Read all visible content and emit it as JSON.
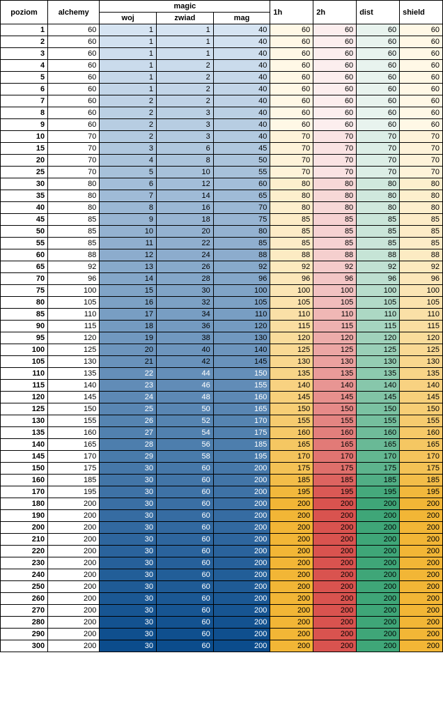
{
  "headers": {
    "poziom": "poziom",
    "alchemy": "alchemy",
    "magic": "magic",
    "woj": "woj",
    "zwiad": "zwiad",
    "mag": "mag",
    "h1": "1h",
    "h2": "2h",
    "dist": "dist",
    "shield": "shield"
  },
  "columns": [
    "poziom",
    "alchemy",
    "woj",
    "zwiad",
    "mag",
    "h1",
    "h2",
    "dist",
    "shield"
  ],
  "rows": [
    [
      1,
      60,
      1,
      1,
      40,
      60,
      60,
      60,
      60
    ],
    [
      2,
      60,
      1,
      1,
      40,
      60,
      60,
      60,
      60
    ],
    [
      3,
      60,
      1,
      1,
      40,
      60,
      60,
      60,
      60
    ],
    [
      4,
      60,
      1,
      2,
      40,
      60,
      60,
      60,
      60
    ],
    [
      5,
      60,
      1,
      2,
      40,
      60,
      60,
      60,
      60
    ],
    [
      6,
      60,
      1,
      2,
      40,
      60,
      60,
      60,
      60
    ],
    [
      7,
      60,
      2,
      2,
      40,
      60,
      60,
      60,
      60
    ],
    [
      8,
      60,
      2,
      3,
      40,
      60,
      60,
      60,
      60
    ],
    [
      9,
      60,
      2,
      3,
      40,
      60,
      60,
      60,
      60
    ],
    [
      10,
      70,
      2,
      3,
      40,
      70,
      70,
      70,
      70
    ],
    [
      15,
      70,
      3,
      6,
      45,
      70,
      70,
      70,
      70
    ],
    [
      20,
      70,
      4,
      8,
      50,
      70,
      70,
      70,
      70
    ],
    [
      25,
      70,
      5,
      10,
      55,
      70,
      70,
      70,
      70
    ],
    [
      30,
      80,
      6,
      12,
      60,
      80,
      80,
      80,
      80
    ],
    [
      35,
      80,
      7,
      14,
      65,
      80,
      80,
      80,
      80
    ],
    [
      40,
      80,
      8,
      16,
      70,
      80,
      80,
      80,
      80
    ],
    [
      45,
      85,
      9,
      18,
      75,
      85,
      85,
      85,
      85
    ],
    [
      50,
      85,
      10,
      20,
      80,
      85,
      85,
      85,
      85
    ],
    [
      55,
      85,
      11,
      22,
      85,
      85,
      85,
      85,
      85
    ],
    [
      60,
      88,
      12,
      24,
      88,
      88,
      88,
      88,
      88
    ],
    [
      65,
      92,
      13,
      26,
      92,
      92,
      92,
      92,
      92
    ],
    [
      70,
      96,
      14,
      28,
      96,
      96,
      96,
      96,
      96
    ],
    [
      75,
      100,
      15,
      30,
      100,
      100,
      100,
      100,
      100
    ],
    [
      80,
      105,
      16,
      32,
      105,
      105,
      105,
      105,
      105
    ],
    [
      85,
      110,
      17,
      34,
      110,
      110,
      110,
      110,
      110
    ],
    [
      90,
      115,
      18,
      36,
      120,
      115,
      115,
      115,
      115
    ],
    [
      95,
      120,
      19,
      38,
      130,
      120,
      120,
      120,
      120
    ],
    [
      100,
      125,
      20,
      40,
      140,
      125,
      125,
      125,
      125
    ],
    [
      105,
      130,
      21,
      42,
      145,
      130,
      130,
      130,
      130
    ],
    [
      110,
      135,
      22,
      44,
      150,
      135,
      135,
      135,
      135
    ],
    [
      115,
      140,
      23,
      46,
      155,
      140,
      140,
      140,
      140
    ],
    [
      120,
      145,
      24,
      48,
      160,
      145,
      145,
      145,
      145
    ],
    [
      125,
      150,
      25,
      50,
      165,
      150,
      150,
      150,
      150
    ],
    [
      130,
      155,
      26,
      52,
      170,
      155,
      155,
      155,
      155
    ],
    [
      135,
      160,
      27,
      54,
      175,
      160,
      160,
      160,
      160
    ],
    [
      140,
      165,
      28,
      56,
      185,
      165,
      165,
      165,
      165
    ],
    [
      145,
      170,
      29,
      58,
      195,
      170,
      170,
      170,
      170
    ],
    [
      150,
      175,
      30,
      60,
      200,
      175,
      175,
      175,
      175
    ],
    [
      160,
      185,
      30,
      60,
      200,
      185,
      185,
      185,
      185
    ],
    [
      170,
      195,
      30,
      60,
      200,
      195,
      195,
      195,
      195
    ],
    [
      180,
      200,
      30,
      60,
      200,
      200,
      200,
      200,
      200
    ],
    [
      190,
      200,
      30,
      60,
      200,
      200,
      200,
      200,
      200
    ],
    [
      200,
      200,
      30,
      60,
      200,
      200,
      200,
      200,
      200
    ],
    [
      210,
      200,
      30,
      60,
      200,
      200,
      200,
      200,
      200
    ],
    [
      220,
      200,
      30,
      60,
      200,
      200,
      200,
      200,
      200
    ],
    [
      230,
      200,
      30,
      60,
      200,
      200,
      200,
      200,
      200
    ],
    [
      240,
      200,
      30,
      60,
      200,
      200,
      200,
      200,
      200
    ],
    [
      250,
      200,
      30,
      60,
      200,
      200,
      200,
      200,
      200
    ],
    [
      260,
      200,
      30,
      60,
      200,
      200,
      200,
      200,
      200
    ],
    [
      270,
      200,
      30,
      60,
      200,
      200,
      200,
      200,
      200
    ],
    [
      280,
      200,
      30,
      60,
      200,
      200,
      200,
      200,
      200
    ],
    [
      290,
      200,
      30,
      60,
      200,
      200,
      200,
      200,
      200
    ],
    [
      300,
      200,
      30,
      60,
      200,
      200,
      200,
      200,
      200
    ]
  ],
  "style": {
    "magic_gradient": {
      "light": "#d6e4f2",
      "dark": "#0b4c8c",
      "text_light": "#000",
      "text_dark": "#fff"
    },
    "h1_gradient": {
      "light": "#fff8e6",
      "dark": "#f2b636"
    },
    "h2_gradient": {
      "light": "#fceeee",
      "dark": "#d9534f"
    },
    "dist_gradient": {
      "light": "#e8f3ee",
      "dark": "#3fa678"
    },
    "shield_gradient": {
      "light": "#fff8e6",
      "dark": "#f2b636"
    }
  }
}
